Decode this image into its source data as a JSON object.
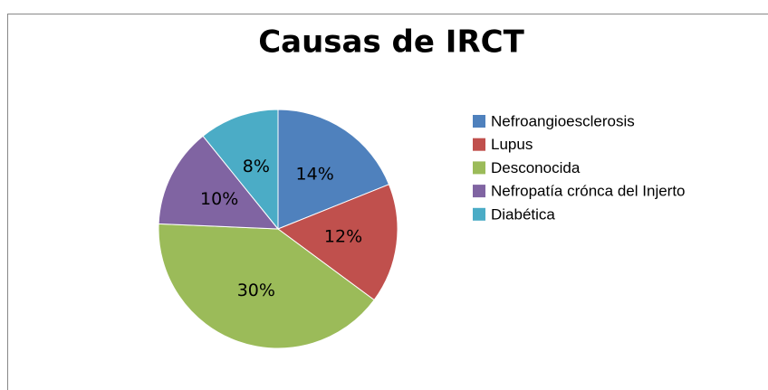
{
  "chart_data": {
    "type": "pie",
    "title": "Causas de IRCT",
    "categories": [
      "Nefroangioesclerosis",
      "Lupus",
      "Desconocida",
      "Nefropatía crónca del Injerto",
      "Diabética"
    ],
    "values": [
      14,
      12,
      30,
      10,
      8
    ],
    "value_labels": [
      "14%",
      "12%",
      "30%",
      "10%",
      "8%"
    ],
    "colors": [
      "#4f81bd",
      "#c0504d",
      "#9bbb59",
      "#8064a2",
      "#4bacc6"
    ],
    "legend": "right"
  }
}
